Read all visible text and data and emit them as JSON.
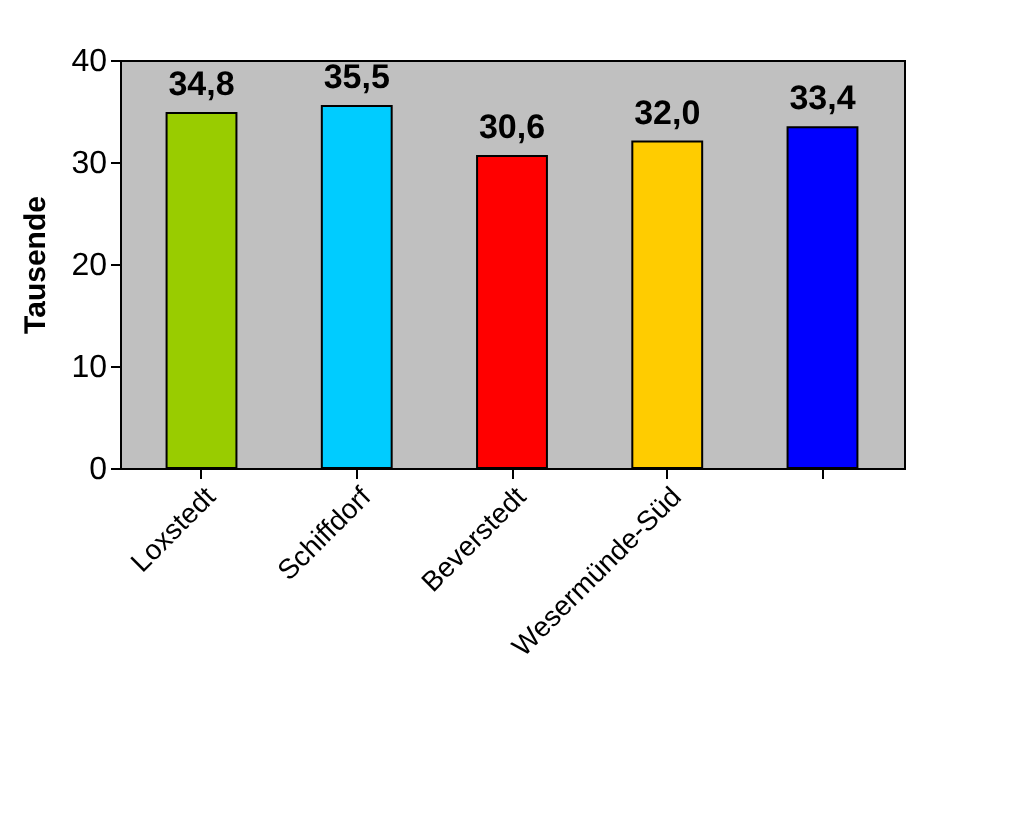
{
  "chart_data": {
    "type": "bar",
    "ylabel": "Tausende",
    "categories": [
      "Loxstedt",
      "Schiffdorf",
      "Beverstedt",
      "Wesermünde-Süd",
      null
    ],
    "values": [
      34.8,
      35.5,
      30.6,
      32.0,
      33.4
    ],
    "colors": [
      "#99cc00",
      "#00ccff",
      "#ff0000",
      "#ffcc00",
      "#0000ff"
    ],
    "value_labels": [
      "34,8",
      "35,5",
      "30,6",
      "32,0",
      "33,4"
    ],
    "ylim": [
      0,
      40
    ],
    "yticks": [
      0,
      10,
      20,
      30,
      40
    ],
    "grid": false
  }
}
